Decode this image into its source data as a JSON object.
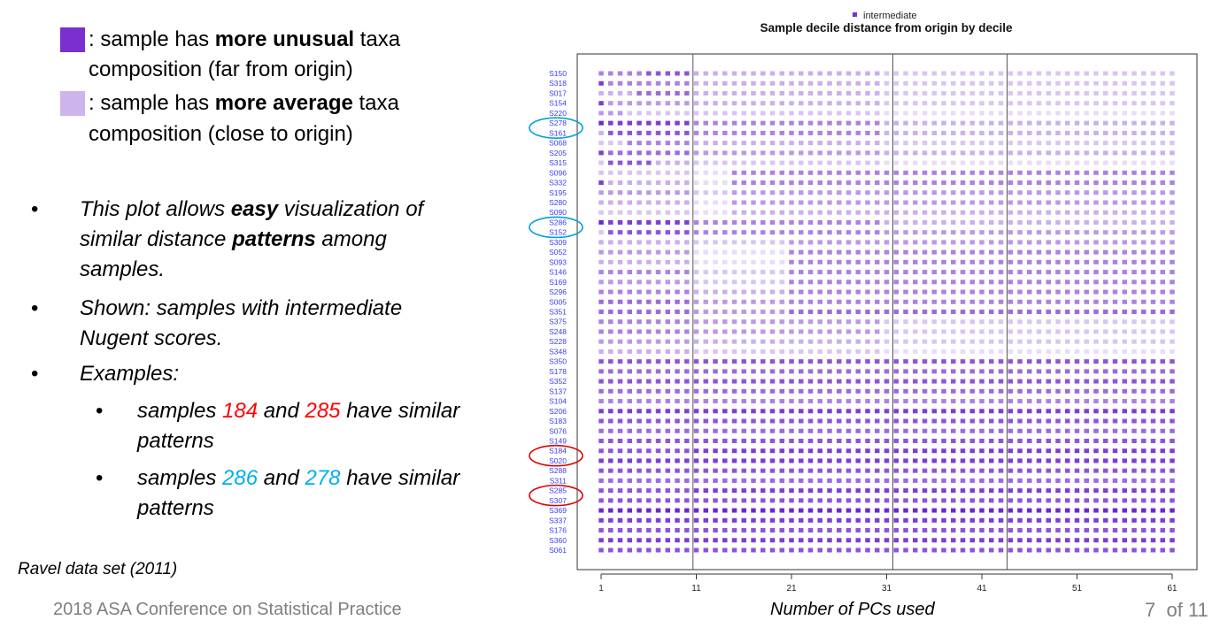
{
  "legend_box": {
    "dark": {
      "color": "#7b2fd1",
      "prefix": ": sample has ",
      "bold": "more unusual",
      "suffix": " taxa",
      "line2": "composition (far from origin)"
    },
    "light": {
      "color": "#cdb4ea",
      "prefix": ": sample has ",
      "bold": "more average",
      "suffix": " taxa",
      "line2": "composition (close to origin)"
    }
  },
  "bullets": {
    "b1": {
      "a": "This plot allows ",
      "b": "easy",
      "c": " visualization of",
      "d": "similar distance ",
      "e": "patterns",
      "f": " among",
      "g": "samples."
    },
    "b2": {
      "a": "Shown: samples with intermediate",
      "b": "Nugent scores."
    },
    "b3": {
      "a": "Examples:"
    },
    "s1": {
      "a": "samples ",
      "n1": "184",
      "b": " and ",
      "n2": "285",
      "c": " have similar",
      "d": "patterns"
    },
    "s2": {
      "a": "samples ",
      "n1": "286",
      "b": " and ",
      "n2": "278",
      "c": " have similar",
      "d": "patterns"
    },
    "dot": "•"
  },
  "source_note": "Ravel data set (2011)",
  "footer": {
    "conference": "2018 ASA Conference on Statistical Practice",
    "page": "7",
    "of": "of 11"
  },
  "chart_data": {
    "type": "heatmap",
    "title": "Sample decile distance from origin by decile",
    "legend": {
      "label": "intermediate",
      "color": "#7b2fd1",
      "position": "top-center"
    },
    "xlabel": "Number of PCs used",
    "xlim": [
      1,
      61
    ],
    "xticks": [
      1,
      11,
      21,
      31,
      41,
      51,
      61
    ],
    "vlines": [
      10,
      31,
      43
    ],
    "grid": false,
    "value_scale": "decile 1-10: 1 = lightest (close to origin), 10 = darkest (far from origin)",
    "samples": [
      "S150",
      "S318",
      "S017",
      "S154",
      "S220",
      "S278",
      "S161",
      "S068",
      "S205",
      "S315",
      "S096",
      "S332",
      "S195",
      "S280",
      "S090",
      "S286",
      "S152",
      "S309",
      "S052",
      "S093",
      "S146",
      "S169",
      "S296",
      "S005",
      "S351",
      "S375",
      "S248",
      "S228",
      "S348",
      "S350",
      "S178",
      "S352",
      "S137",
      "S104",
      "S206",
      "S183",
      "S076",
      "S149",
      "S184",
      "S020",
      "S288",
      "S311",
      "S285",
      "S307",
      "S369",
      "S337",
      "S176",
      "S360",
      "S061"
    ],
    "rows": [
      {
        "sample": "S150",
        "segments": [
          [
            1,
            5,
            6
          ],
          [
            6,
            10,
            8
          ],
          [
            11,
            30,
            4
          ],
          [
            31,
            61,
            3
          ]
        ]
      },
      {
        "sample": "S318",
        "segments": [
          [
            1,
            1,
            9
          ],
          [
            2,
            10,
            6
          ],
          [
            11,
            30,
            4
          ],
          [
            31,
            61,
            3
          ]
        ]
      },
      {
        "sample": "S017",
        "segments": [
          [
            1,
            4,
            4
          ],
          [
            5,
            10,
            7
          ],
          [
            11,
            30,
            4
          ],
          [
            31,
            61,
            3
          ]
        ]
      },
      {
        "sample": "S154",
        "segments": [
          [
            1,
            1,
            9
          ],
          [
            2,
            10,
            5
          ],
          [
            11,
            30,
            4
          ],
          [
            31,
            61,
            3
          ]
        ]
      },
      {
        "sample": "S220",
        "segments": [
          [
            1,
            3,
            5
          ],
          [
            4,
            10,
            3
          ],
          [
            11,
            30,
            3
          ],
          [
            31,
            61,
            2
          ]
        ]
      },
      {
        "sample": "S278",
        "segments": [
          [
            1,
            1,
            10
          ],
          [
            2,
            10,
            9
          ],
          [
            11,
            30,
            6
          ],
          [
            31,
            61,
            4
          ]
        ]
      },
      {
        "sample": "S161",
        "segments": [
          [
            1,
            1,
            4
          ],
          [
            2,
            10,
            8
          ],
          [
            11,
            30,
            6
          ],
          [
            31,
            61,
            4
          ]
        ]
      },
      {
        "sample": "S068",
        "segments": [
          [
            1,
            3,
            3
          ],
          [
            4,
            10,
            6
          ],
          [
            11,
            30,
            4
          ],
          [
            31,
            61,
            3
          ]
        ]
      },
      {
        "sample": "S205",
        "segments": [
          [
            1,
            1,
            9
          ],
          [
            2,
            10,
            7
          ],
          [
            11,
            30,
            5
          ],
          [
            31,
            61,
            4
          ]
        ]
      },
      {
        "sample": "S315",
        "segments": [
          [
            1,
            1,
            3
          ],
          [
            2,
            6,
            8
          ],
          [
            7,
            10,
            4
          ],
          [
            11,
            30,
            3
          ],
          [
            31,
            61,
            2
          ]
        ]
      },
      {
        "sample": "S096",
        "segments": [
          [
            1,
            10,
            3
          ],
          [
            11,
            14,
            2
          ],
          [
            15,
            61,
            6
          ]
        ]
      },
      {
        "sample": "S332",
        "segments": [
          [
            1,
            1,
            9
          ],
          [
            2,
            10,
            4
          ],
          [
            11,
            14,
            2
          ],
          [
            15,
            61,
            6
          ]
        ]
      },
      {
        "sample": "S195",
        "segments": [
          [
            1,
            10,
            5
          ],
          [
            11,
            14,
            3
          ],
          [
            15,
            61,
            5
          ]
        ]
      },
      {
        "sample": "S280",
        "segments": [
          [
            1,
            10,
            4
          ],
          [
            11,
            14,
            2
          ],
          [
            15,
            61,
            5
          ]
        ]
      },
      {
        "sample": "S090",
        "segments": [
          [
            1,
            10,
            3
          ],
          [
            11,
            14,
            2
          ],
          [
            15,
            61,
            4
          ]
        ]
      },
      {
        "sample": "S286",
        "segments": [
          [
            1,
            1,
            10
          ],
          [
            2,
            10,
            9
          ],
          [
            11,
            30,
            6
          ],
          [
            31,
            61,
            4
          ]
        ]
      },
      {
        "sample": "S152",
        "segments": [
          [
            1,
            1,
            3
          ],
          [
            2,
            10,
            8
          ],
          [
            11,
            30,
            6
          ],
          [
            31,
            61,
            5
          ]
        ]
      },
      {
        "sample": "S309",
        "segments": [
          [
            1,
            10,
            4
          ],
          [
            11,
            20,
            3
          ],
          [
            21,
            61,
            5
          ]
        ]
      },
      {
        "sample": "S052",
        "segments": [
          [
            1,
            10,
            5
          ],
          [
            11,
            20,
            2
          ],
          [
            21,
            61,
            6
          ]
        ]
      },
      {
        "sample": "S093",
        "segments": [
          [
            1,
            10,
            4
          ],
          [
            11,
            20,
            2
          ],
          [
            21,
            61,
            6
          ]
        ]
      },
      {
        "sample": "S146",
        "segments": [
          [
            1,
            10,
            6
          ],
          [
            11,
            20,
            3
          ],
          [
            21,
            61,
            6
          ]
        ]
      },
      {
        "sample": "S169",
        "segments": [
          [
            1,
            10,
            5
          ],
          [
            11,
            20,
            3
          ],
          [
            21,
            61,
            6
          ]
        ]
      },
      {
        "sample": "S296",
        "segments": [
          [
            1,
            10,
            6
          ],
          [
            11,
            20,
            4
          ],
          [
            21,
            61,
            6
          ]
        ]
      },
      {
        "sample": "S005",
        "segments": [
          [
            1,
            10,
            7
          ],
          [
            11,
            20,
            5
          ],
          [
            21,
            61,
            6
          ]
        ]
      },
      {
        "sample": "S351",
        "segments": [
          [
            1,
            10,
            7
          ],
          [
            11,
            20,
            5
          ],
          [
            21,
            61,
            7
          ]
        ]
      },
      {
        "sample": "S375",
        "segments": [
          [
            1,
            10,
            6
          ],
          [
            11,
            30,
            5
          ],
          [
            31,
            61,
            3
          ]
        ]
      },
      {
        "sample": "S248",
        "segments": [
          [
            1,
            10,
            6
          ],
          [
            11,
            30,
            5
          ],
          [
            31,
            61,
            3
          ]
        ]
      },
      {
        "sample": "S228",
        "segments": [
          [
            1,
            10,
            5
          ],
          [
            11,
            30,
            4
          ],
          [
            31,
            61,
            3
          ]
        ]
      },
      {
        "sample": "S348",
        "segments": [
          [
            1,
            10,
            4
          ],
          [
            11,
            30,
            3
          ],
          [
            31,
            61,
            2
          ]
        ]
      },
      {
        "sample": "S350",
        "segments": [
          [
            1,
            61,
            8
          ]
        ]
      },
      {
        "sample": "S178",
        "segments": [
          [
            1,
            61,
            7
          ]
        ]
      },
      {
        "sample": "S352",
        "segments": [
          [
            1,
            61,
            8
          ]
        ]
      },
      {
        "sample": "S137",
        "segments": [
          [
            1,
            61,
            7
          ]
        ]
      },
      {
        "sample": "S104",
        "segments": [
          [
            1,
            61,
            6
          ]
        ]
      },
      {
        "sample": "S206",
        "segments": [
          [
            1,
            61,
            9
          ]
        ]
      },
      {
        "sample": "S183",
        "segments": [
          [
            1,
            61,
            8
          ]
        ]
      },
      {
        "sample": "S076",
        "segments": [
          [
            1,
            61,
            7
          ]
        ]
      },
      {
        "sample": "S149",
        "segments": [
          [
            1,
            61,
            8
          ]
        ]
      },
      {
        "sample": "S184",
        "segments": [
          [
            1,
            10,
            8
          ],
          [
            11,
            61,
            9
          ]
        ]
      },
      {
        "sample": "S020",
        "segments": [
          [
            1,
            61,
            9
          ]
        ]
      },
      {
        "sample": "S288",
        "segments": [
          [
            1,
            61,
            8
          ]
        ]
      },
      {
        "sample": "S311",
        "segments": [
          [
            1,
            61,
            7
          ]
        ]
      },
      {
        "sample": "S285",
        "segments": [
          [
            1,
            10,
            8
          ],
          [
            11,
            61,
            9
          ]
        ]
      },
      {
        "sample": "S307",
        "segments": [
          [
            1,
            61,
            8
          ]
        ]
      },
      {
        "sample": "S369",
        "segments": [
          [
            1,
            61,
            10
          ]
        ]
      },
      {
        "sample": "S337",
        "segments": [
          [
            1,
            61,
            9
          ]
        ]
      },
      {
        "sample": "S176",
        "segments": [
          [
            1,
            61,
            8
          ]
        ]
      },
      {
        "sample": "S360",
        "segments": [
          [
            1,
            61,
            9
          ]
        ]
      },
      {
        "sample": "S061",
        "segments": [
          [
            1,
            61,
            8
          ]
        ]
      }
    ],
    "highlight_circles": [
      {
        "sample": "S278",
        "color": "#00a0dc"
      },
      {
        "sample": "S286",
        "color": "#00a0dc"
      },
      {
        "sample": "S184",
        "color": "#e00000"
      },
      {
        "sample": "S285",
        "color": "#e00000"
      }
    ]
  }
}
